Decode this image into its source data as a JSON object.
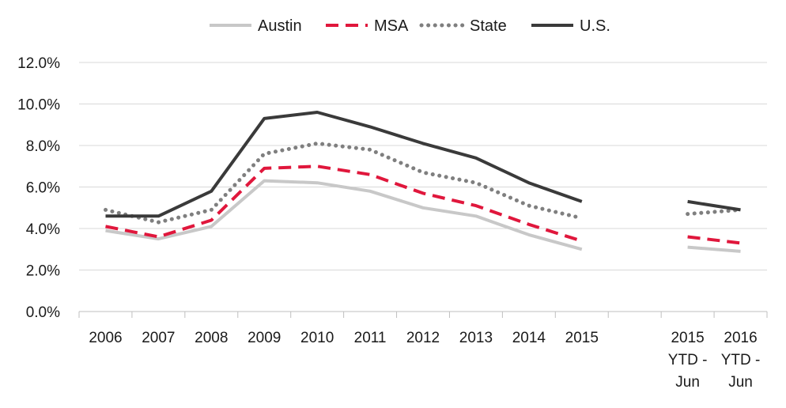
{
  "chart_data": {
    "type": "line",
    "categories": [
      "2006",
      "2007",
      "2008",
      "2009",
      "2010",
      "2011",
      "2012",
      "2013",
      "2014",
      "2015",
      "",
      "2015 YTD - Jun",
      "2016 YTD - Jun"
    ],
    "category_lines": [
      [
        "2006"
      ],
      [
        "2007"
      ],
      [
        "2008"
      ],
      [
        "2009"
      ],
      [
        "2010"
      ],
      [
        "2011"
      ],
      [
        "2012"
      ],
      [
        "2013"
      ],
      [
        "2014"
      ],
      [
        "2015"
      ],
      [],
      [
        "2015",
        "YTD -",
        "Jun"
      ],
      [
        "2016",
        "YTD -",
        "Jun"
      ]
    ],
    "y_ticks": [
      "0.0%",
      "2.0%",
      "4.0%",
      "6.0%",
      "8.0%",
      "10.0%",
      "12.0%"
    ],
    "ylim": [
      0,
      12
    ],
    "grid": true,
    "legend_position": "top",
    "series": [
      {
        "name": "Austin",
        "style": "solid",
        "color": "#c8c8c8",
        "values": [
          3.9,
          3.5,
          4.1,
          6.3,
          6.2,
          5.8,
          5.0,
          4.6,
          3.7,
          3.0,
          null,
          3.1,
          2.9
        ]
      },
      {
        "name": "MSA",
        "style": "dashed",
        "color": "#e0173c",
        "values": [
          4.1,
          3.6,
          4.4,
          6.9,
          7.0,
          6.6,
          5.7,
          5.1,
          4.2,
          3.4,
          null,
          3.6,
          3.3
        ]
      },
      {
        "name": "State",
        "style": "dotted",
        "color": "#7f7f7f",
        "values": [
          4.9,
          4.3,
          4.9,
          7.6,
          8.1,
          7.8,
          6.7,
          6.2,
          5.1,
          4.5,
          null,
          4.7,
          4.9
        ]
      },
      {
        "name": "U.S.",
        "style": "solid",
        "color": "#3a3a3a",
        "values": [
          4.6,
          4.6,
          5.8,
          9.3,
          9.6,
          8.9,
          8.1,
          7.4,
          6.2,
          5.3,
          null,
          5.3,
          4.9
        ]
      }
    ]
  }
}
